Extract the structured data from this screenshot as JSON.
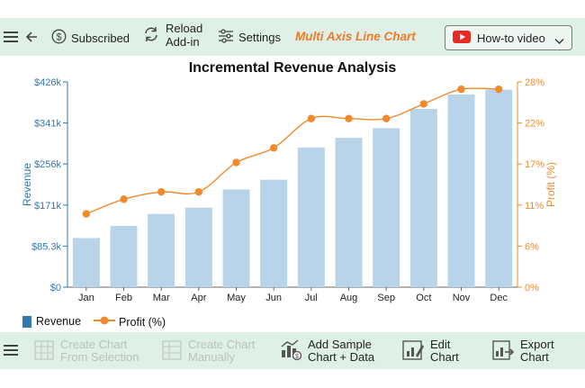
{
  "toolbar": {
    "subscribed_label": "Subscribed",
    "reload_label_1": "Reload",
    "reload_label_2": "Add-in",
    "settings_label": "Settings",
    "chart_type_title": "Multi Axis Line Chart",
    "howto_label": "How-to video"
  },
  "bottom_toolbar": {
    "create_selection_1": "Create Chart",
    "create_selection_2": "From Selection",
    "create_manual_1": "Create Chart",
    "create_manual_2": "Manually",
    "add_sample_1": "Add Sample",
    "add_sample_2": "Chart + Data",
    "edit_1": "Edit",
    "edit_2": "Chart",
    "export_1": "Export",
    "export_2": "Chart"
  },
  "colors": {
    "revenue": "#b9d4e9",
    "revenue_axis": "#2f79b5",
    "profit": "#f08a2c",
    "accent_title": "#f07a2a"
  },
  "chart_data": {
    "type": "bar",
    "title": "Incremental Revenue Analysis",
    "categories": [
      "Jan",
      "Feb",
      "Mar",
      "Apr",
      "May",
      "Jun",
      "Jul",
      "Aug",
      "Sep",
      "Oct",
      "Nov",
      "Dec"
    ],
    "series": [
      {
        "name": "Revenue",
        "type": "bar",
        "axis": "left",
        "values": [
          102,
          127,
          152,
          165,
          203,
          223,
          290,
          310,
          330,
          370,
          400,
          410
        ]
      },
      {
        "name": "Profit (%)",
        "type": "line",
        "axis": "right",
        "values": [
          10,
          12,
          13,
          13,
          17,
          19,
          23,
          23,
          23,
          25,
          27,
          27
        ]
      }
    ],
    "ylabel": "Revenue",
    "y2label": "Profit (%)",
    "ylim": [
      0,
      426
    ],
    "y2lim": [
      0,
      28
    ],
    "yticks": [
      "$0",
      "$85.3k",
      "$171k",
      "$256k",
      "$341k",
      "$426k"
    ],
    "y2ticks": [
      "0%",
      "6%",
      "11%",
      "17%",
      "22%",
      "28%"
    ],
    "legend": "bottom-left",
    "grid": false
  }
}
